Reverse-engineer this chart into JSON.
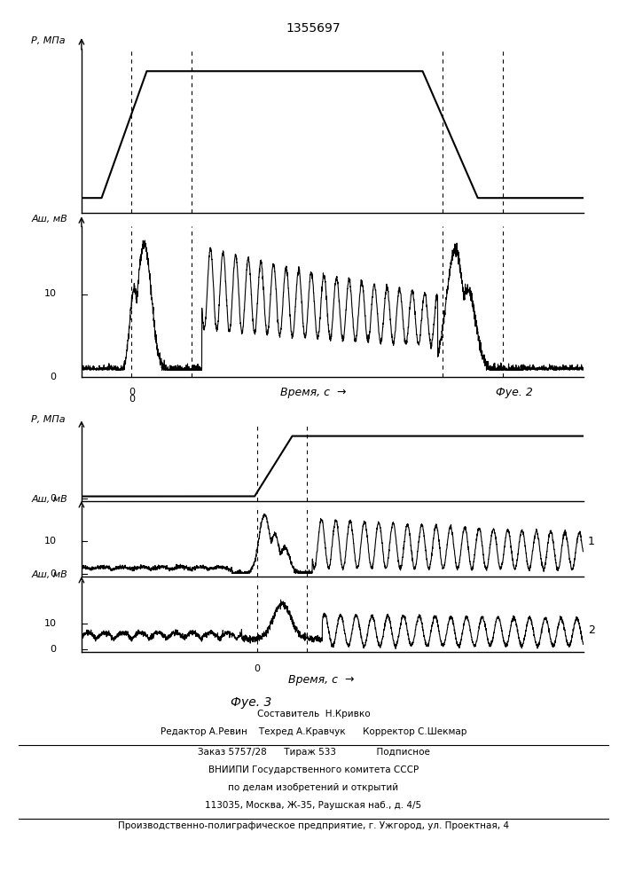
{
  "title": "1355697",
  "fig2_label": "Фуе. 2",
  "fig3_label": "Фуе. 3",
  "xlabel_time": "Время, с",
  "ylabel_P": "Р, МПа",
  "ylabel_A": "Аш, мВ",
  "label_1": "1",
  "label_2": "2",
  "footer_line1": "Составитель  Н.Кривко",
  "footer_line2": "Редактор А.Ревин    Техред А.Кравчук      Корректор С.Шекмар",
  "footer_line3": "Заказ 5757/28      Тираж 533              Подписное",
  "footer_line4": "ВНИИПИ Государственного комитета СССР",
  "footer_line5": "по делам изобретений и открытий",
  "footer_line6": "113035, Москва, Ж-35, Раушская наб., д. 4/5",
  "footer_line7": "Производственно-полиграфическое предприятие, г. Ужгород, ул. Проектная, 4",
  "bg_color": "#ffffff",
  "line_color": "#000000"
}
